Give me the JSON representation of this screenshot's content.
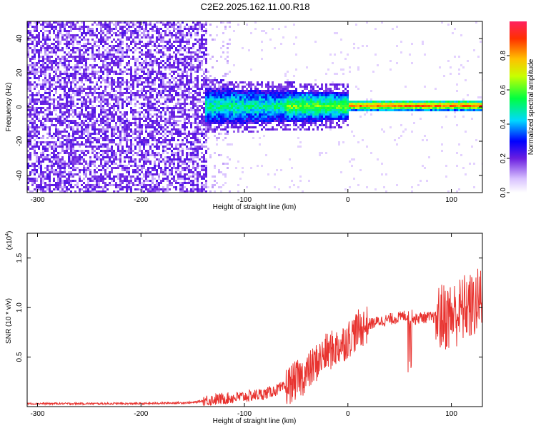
{
  "title": "C2E2.2025.162.11.00.R18",
  "chart_data": [
    {
      "type": "heatmap",
      "xlabel": "Height of straight line (km)",
      "ylabel": "Frequency (Hz)",
      "xlim": [
        -310,
        130
      ],
      "ylim": [
        -50,
        50
      ],
      "xticks": [
        -300,
        -200,
        -100,
        0,
        100
      ],
      "yticks": [
        -40,
        -20,
        0,
        20,
        40
      ],
      "colorbar": {
        "label": "Normalized spectral amplitude",
        "range": [
          0.0,
          1.0
        ],
        "ticks": [
          "0.0",
          "0.2",
          "0.4",
          "0.6",
          "0.8"
        ]
      },
      "description_regions": [
        {
          "x": [
            -310,
            -135
          ],
          "y": [
            -50,
            50
          ],
          "amplitude": "low, noisy (purple)"
        },
        {
          "x": [
            -135,
            0
          ],
          "y": [
            -10,
            10
          ],
          "amplitude": "medium (blue/green)"
        },
        {
          "x": [
            0,
            130
          ],
          "y": [
            -3,
            3
          ],
          "amplitude": "high (green/red narrow line near 0 Hz)"
        }
      ]
    },
    {
      "type": "line",
      "xlabel": "Height of straight line (km)",
      "ylabel": "SNR (10 * v/v)",
      "y_multiplier": "(x10",
      "y_multiplier_exp": "4",
      "y_multiplier_close": ")",
      "xlim": [
        -310,
        130
      ],
      "ylim": [
        0,
        1.75
      ],
      "xticks": [
        -300,
        -200,
        -100,
        0,
        100
      ],
      "yticks": [
        "0.5",
        "1.0",
        "1.5"
      ],
      "series": [
        {
          "color": "#e8332f",
          "x": [
            -310,
            -250,
            -200,
            -150,
            -140,
            -120,
            -100,
            -80,
            -60,
            -40,
            -30,
            -20,
            -10,
            0,
            10,
            20,
            30,
            40,
            50,
            55,
            60,
            62,
            65,
            70,
            80,
            90,
            100,
            110,
            115,
            120,
            125,
            130
          ],
          "y": [
            0.03,
            0.03,
            0.03,
            0.04,
            0.06,
            0.08,
            0.1,
            0.13,
            0.2,
            0.33,
            0.45,
            0.55,
            0.6,
            0.68,
            0.78,
            0.83,
            0.86,
            0.88,
            0.9,
            0.92,
            0.9,
            0.92,
            0.88,
            0.9,
            0.9,
            0.9,
            0.92,
            0.97,
            1.02,
            1.0,
            1.05,
            1.1
          ]
        }
      ]
    }
  ]
}
